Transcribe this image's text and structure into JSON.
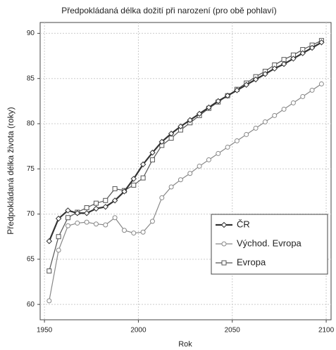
{
  "chart_data": {
    "type": "line",
    "title": "Předpokládaná délka dožití při narození (pro obě pohlaví)",
    "xlabel": "Rok",
    "ylabel": "Předpokládaná délka života (roky)",
    "x": [
      1952.5,
      1957.5,
      1962.5,
      1967.5,
      1972.5,
      1977.5,
      1982.5,
      1987.5,
      1992.5,
      1997.5,
      2002.5,
      2007.5,
      2012.5,
      2017.5,
      2022.5,
      2027.5,
      2032.5,
      2037.5,
      2042.5,
      2047.5,
      2052.5,
      2057.5,
      2062.5,
      2067.5,
      2072.5,
      2077.5,
      2082.5,
      2087.5,
      2092.5,
      2097.5
    ],
    "series": [
      {
        "name": "ČR",
        "color": "#333333",
        "marker": "diamond",
        "values": [
          67,
          69.5,
          70.4,
          70.1,
          70.1,
          70.6,
          70.8,
          71.5,
          72.5,
          73.9,
          75.5,
          76.8,
          78.0,
          78.9,
          79.7,
          80.4,
          81.1,
          81.8,
          82.5,
          83.1,
          83.7,
          84.3,
          84.9,
          85.5,
          86.1,
          86.6,
          87.2,
          87.8,
          88.4,
          89.0
        ]
      },
      {
        "name": "Východ. Evropa",
        "color": "#888888",
        "marker": "circle",
        "values": [
          60.4,
          66.0,
          68.7,
          69.0,
          69.1,
          68.9,
          68.8,
          69.6,
          68.2,
          67.9,
          68.0,
          69.2,
          71.8,
          73.0,
          73.8,
          74.5,
          75.3,
          76.0,
          76.7,
          77.4,
          78.1,
          78.8,
          79.5,
          80.2,
          80.9,
          81.6,
          82.3,
          83.0,
          83.7,
          84.4
        ]
      },
      {
        "name": "Evropa",
        "color": "#555555",
        "marker": "square",
        "values": [
          63.7,
          67.5,
          69.6,
          70.2,
          70.7,
          71.2,
          71.5,
          72.8,
          72.6,
          73.2,
          74.0,
          76.0,
          77.6,
          78.4,
          79.3,
          80.1,
          80.9,
          81.7,
          82.4,
          83.1,
          83.8,
          84.5,
          85.2,
          85.8,
          86.5,
          87.1,
          87.6,
          88.2,
          88.7,
          89.2
        ]
      }
    ],
    "xlim": [
      1947.7,
      2102.6
    ],
    "xticks": [
      1950,
      2000,
      2050,
      2100
    ],
    "ylim": [
      58.3,
      91.2
    ],
    "yticks": [
      60,
      65,
      70,
      75,
      80,
      85,
      90
    ],
    "grid": true,
    "legend": "lower right"
  }
}
